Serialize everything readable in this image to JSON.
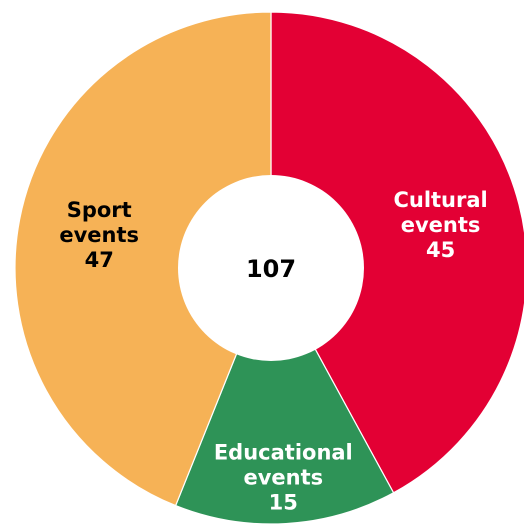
{
  "chart_data": {
    "type": "pie",
    "style": "donut",
    "total": "107",
    "slices": [
      {
        "label_lines": [
          "Cultural",
          "events"
        ],
        "value": 45,
        "color": "#E30034",
        "label_color": "#ffffff"
      },
      {
        "label_lines": [
          "Educational",
          "events"
        ],
        "value": 15,
        "color": "#2E9357",
        "label_color": "#ffffff"
      },
      {
        "label_lines": [
          "Sport",
          "events"
        ],
        "value": 47,
        "color": "#F6B256",
        "label_color": "#000000"
      }
    ],
    "center_color": "#ffffff",
    "center_text_color": "#000000",
    "legend": "none"
  }
}
